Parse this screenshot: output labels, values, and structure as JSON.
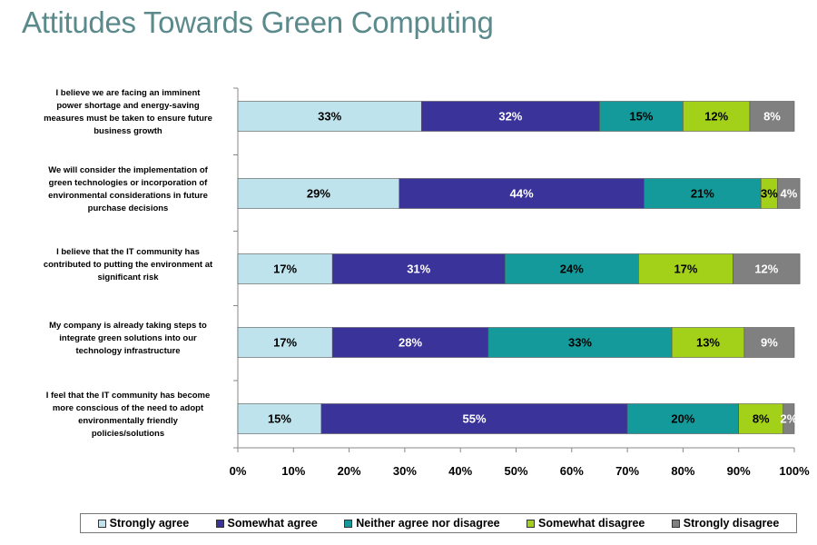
{
  "chart_data": {
    "type": "bar",
    "orientation": "horizontal",
    "stacked": true,
    "title": "Attitudes Towards Green Computing",
    "categories": [
      "I believe we are facing an imminent power shortage and energy-saving measures must be taken to ensure future business growth",
      "We will consider the implementation of green technologies or incorporation of environmental considerations in future purchase decisions",
      "I believe that the IT community has contributed to putting the environment at significant risk",
      "My company is already taking steps to integrate green solutions into our technology infrastructure",
      "I feel that the IT community has become more conscious of the need to adopt environmentally friendly policies/solutions"
    ],
    "category_lines": [
      [
        "I believe we are facing an imminent",
        "power shortage and energy-saving",
        "measures must be taken to ensure future",
        "business growth"
      ],
      [
        "We will consider the implementation of",
        "green technologies or incorporation of",
        "environmental considerations in future",
        "purchase decisions"
      ],
      [
        "I believe that the IT community has",
        "contributed to putting the environment at",
        "significant risk"
      ],
      [
        "My company is already taking steps to",
        "integrate green solutions into our",
        "technology infrastructure"
      ],
      [
        "I feel that the IT community has become",
        "more conscious of the need to adopt",
        "environmentally friendly",
        "policies/solutions"
      ]
    ],
    "series": [
      {
        "name": "Strongly agree",
        "color": "#bfe3ec",
        "values": [
          33,
          29,
          17,
          17,
          15
        ]
      },
      {
        "name": "Somewhat agree",
        "color": "#3a3399",
        "values": [
          32,
          44,
          31,
          28,
          55
        ]
      },
      {
        "name": "Neither agree nor disagree",
        "color": "#149a9a",
        "values": [
          15,
          21,
          24,
          33,
          20
        ]
      },
      {
        "name": "Somewhat disagree",
        "color": "#a3d11a",
        "values": [
          12,
          3,
          17,
          13,
          8
        ]
      },
      {
        "name": "Strongly disagree",
        "color": "#808080",
        "values": [
          8,
          4,
          12,
          9,
          2
        ]
      }
    ],
    "data_labels": [
      [
        "33%",
        "32%",
        "15%",
        "12%",
        "8%"
      ],
      [
        "29%",
        "44%",
        "21%",
        "3%",
        "4%"
      ],
      [
        "17%",
        "31%",
        "24%",
        "17%",
        "12%"
      ],
      [
        "17%",
        "28%",
        "33%",
        "13%",
        "9%"
      ],
      [
        "15%",
        "55%",
        "20%",
        "8%",
        "2%"
      ]
    ],
    "x_ticks": [
      "0%",
      "10%",
      "20%",
      "30%",
      "40%",
      "50%",
      "60%",
      "70%",
      "80%",
      "90%",
      "100%"
    ],
    "xlim": [
      0,
      100
    ],
    "legend_position": "bottom",
    "grid": false
  }
}
